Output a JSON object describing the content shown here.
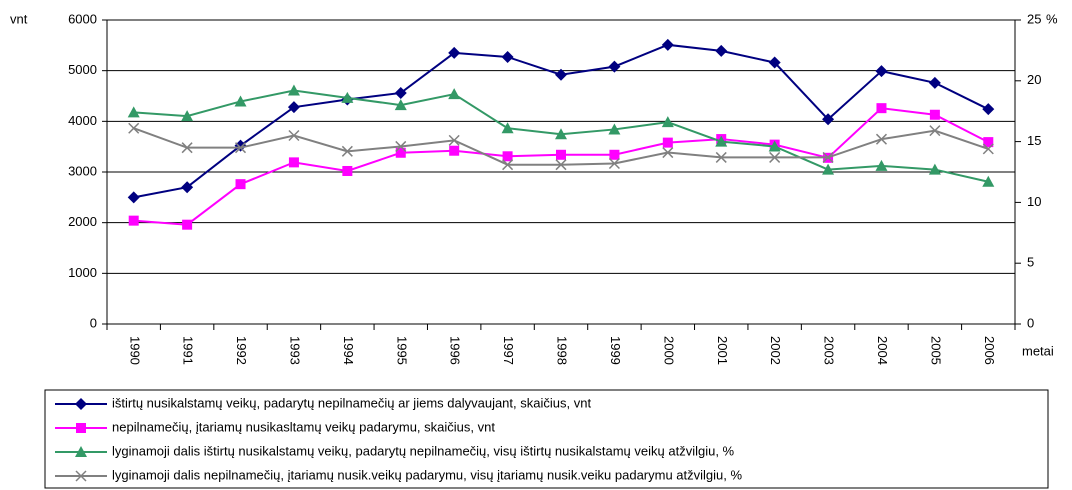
{
  "chart_data": {
    "type": "line",
    "y_label": "vnt",
    "y2_label": "%",
    "x_label": "metai",
    "categories": [
      "1990",
      "1991",
      "1992",
      "1993",
      "1994",
      "1995",
      "1996",
      "1997",
      "1998",
      "1999",
      "2000",
      "2001",
      "2002",
      "2003",
      "2004",
      "2005",
      "2006"
    ],
    "ylim": [
      0,
      6000
    ],
    "yticks": [
      0,
      1000,
      2000,
      3000,
      4000,
      5000,
      6000
    ],
    "y2lim": [
      0,
      25
    ],
    "y2ticks": [
      0,
      5,
      10,
      15,
      20,
      25
    ],
    "grid": true,
    "series": [
      {
        "name": "ištirtų nusikalstamų veikų, padarytų nepilnamečių ar jiems dalyvaujant, skaičius, vnt",
        "color": "#000080",
        "marker": "diamond",
        "values": [
          2500,
          2700,
          3520,
          4280,
          4430,
          4560,
          5350,
          5270,
          4920,
          5080,
          5510,
          5390,
          5160,
          4040,
          4990,
          4760,
          4240
        ]
      },
      {
        "name": "nepilnamečių, įtariamų nusikasltamų veikų padarymu, skaičius, vnt",
        "color": "#ff00ff",
        "marker": "square",
        "values": [
          2040,
          1960,
          2760,
          3190,
          3020,
          3380,
          3420,
          3310,
          3340,
          3340,
          3580,
          3650,
          3540,
          3280,
          4260,
          4130,
          3590
        ]
      },
      {
        "name": "lyginamoji dalis ištirtų nusikalstamų veikų, padarytų nepilnamečių, visų ištirtų nusikalstamų veikų atžvilgiu, %",
        "color": "#339966",
        "marker": "triangle",
        "axis": "y2",
        "values": [
          17.4,
          17.1,
          18.3,
          19.2,
          18.6,
          18.0,
          18.9,
          16.1,
          15.6,
          16.0,
          16.6,
          15.0,
          14.6,
          12.7,
          13.0,
          12.7,
          11.7
        ]
      },
      {
        "name": "lyginamoji dalis nepilnamečių, įtariamų nusik.veikų padarymu, visų įtariamų nusik.veiku padarymu atžvilgiu, %",
        "color": "#808080",
        "marker": "x",
        "axis": "y2",
        "values": [
          16.1,
          14.5,
          14.5,
          15.5,
          14.2,
          14.6,
          15.1,
          13.1,
          13.1,
          13.2,
          14.1,
          13.7,
          13.7,
          13.7,
          15.2,
          15.9,
          14.4
        ]
      }
    ]
  }
}
